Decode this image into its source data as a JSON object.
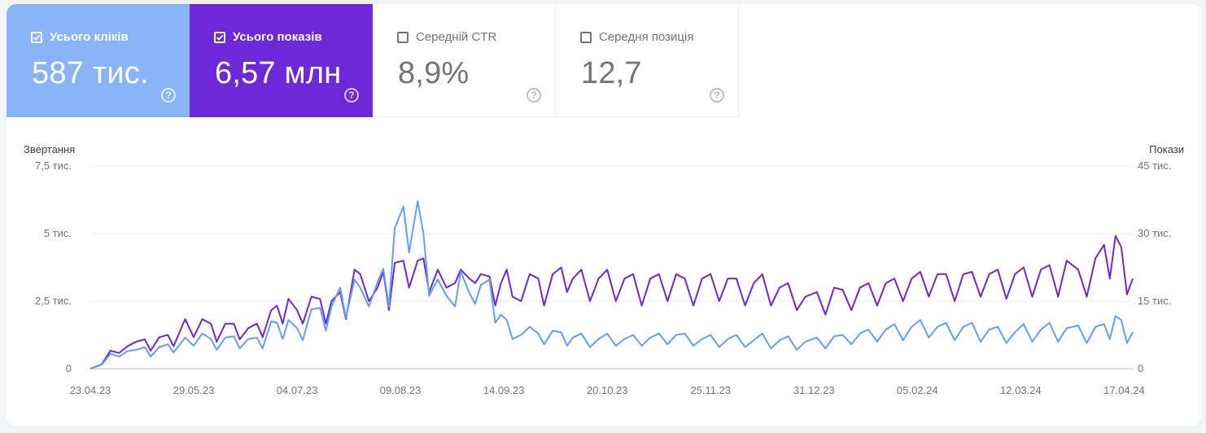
{
  "metrics": [
    {
      "label": "Усього кліків",
      "value": "587 тис.",
      "checked": true,
      "color": "#8ab4f8",
      "help_icon": "help-circle-icon"
    },
    {
      "label": "Усього показів",
      "value": "6,57 млн",
      "checked": true,
      "color": "#6d28d9",
      "help_icon": "help-circle-icon"
    },
    {
      "label": "Середній CTR",
      "value": "8,9%",
      "checked": false,
      "color": "#ffffff",
      "help_icon": "help-circle-icon"
    },
    {
      "label": "Середня позиція",
      "value": "12,7",
      "checked": false,
      "color": "#ffffff",
      "help_icon": "help-circle-icon"
    }
  ],
  "chart_data": {
    "type": "line",
    "left_axis_label": "Звертання",
    "right_axis_label": "Покази",
    "y_left_ticks": [
      "7,5 тис.",
      "5 тис.",
      "2,5 тис.",
      "0"
    ],
    "y_right_ticks": [
      "45 тис.",
      "30 тис.",
      "15 тис.",
      "0"
    ],
    "ylim_left": [
      0,
      7500
    ],
    "ylim_right": [
      0,
      45000
    ],
    "x_ticks": [
      "23.04.23",
      "29.05.23",
      "04.07.23",
      "09.08.23",
      "14.09.23",
      "20.10.23",
      "25.11.23",
      "31.12.23",
      "05.02.24",
      "12.03.24",
      "17.04.24"
    ],
    "x_range": [
      "23.04.23",
      "20.04.24"
    ],
    "grid": true,
    "series": [
      {
        "name": "Усього показів",
        "axis": "right",
        "color": "#6d28d9",
        "points": [
          [
            "2023-04-23",
            0
          ],
          [
            "2023-04-27",
            1000
          ],
          [
            "2023-04-30",
            4000
          ],
          [
            "2023-05-03",
            3500
          ],
          [
            "2023-05-06",
            5000
          ],
          [
            "2023-05-09",
            6000
          ],
          [
            "2023-05-12",
            6500
          ],
          [
            "2023-05-14",
            4000
          ],
          [
            "2023-05-17",
            7000
          ],
          [
            "2023-05-20",
            7500
          ],
          [
            "2023-05-22",
            5000
          ],
          [
            "2023-05-26",
            11000
          ],
          [
            "2023-05-29",
            7000
          ],
          [
            "2023-06-01",
            11000
          ],
          [
            "2023-06-04",
            10000
          ],
          [
            "2023-06-06",
            6000
          ],
          [
            "2023-06-09",
            10000
          ],
          [
            "2023-06-12",
            10000
          ],
          [
            "2023-06-14",
            6500
          ],
          [
            "2023-06-17",
            9000
          ],
          [
            "2023-06-20",
            10000
          ],
          [
            "2023-06-22",
            7000
          ],
          [
            "2023-06-25",
            13000
          ],
          [
            "2023-06-27",
            14000
          ],
          [
            "2023-06-29",
            10000
          ],
          [
            "2023-07-01",
            15500
          ],
          [
            "2023-07-04",
            13000
          ],
          [
            "2023-07-06",
            10000
          ],
          [
            "2023-07-09",
            16000
          ],
          [
            "2023-07-12",
            15500
          ],
          [
            "2023-07-14",
            10000
          ],
          [
            "2023-07-16",
            15000
          ],
          [
            "2023-07-19",
            17000
          ],
          [
            "2023-07-21",
            11000
          ],
          [
            "2023-07-24",
            22000
          ],
          [
            "2023-07-26",
            21000
          ],
          [
            "2023-07-29",
            15000
          ],
          [
            "2023-08-01",
            18000
          ],
          [
            "2023-08-03",
            21500
          ],
          [
            "2023-08-05",
            13000
          ],
          [
            "2023-08-07",
            23500
          ],
          [
            "2023-08-10",
            24000
          ],
          [
            "2023-08-12",
            18000
          ],
          [
            "2023-08-15",
            24000
          ],
          [
            "2023-08-17",
            24500
          ],
          [
            "2023-08-19",
            17000
          ],
          [
            "2023-08-22",
            22000
          ],
          [
            "2023-08-25",
            18000
          ],
          [
            "2023-08-28",
            19000
          ],
          [
            "2023-08-30",
            22000
          ],
          [
            "2023-09-02",
            20000
          ],
          [
            "2023-09-04",
            19000
          ],
          [
            "2023-09-06",
            21000
          ],
          [
            "2023-09-09",
            20500
          ],
          [
            "2023-09-11",
            14000
          ],
          [
            "2023-09-13",
            19000
          ],
          [
            "2023-09-15",
            22000
          ],
          [
            "2023-09-17",
            16000
          ],
          [
            "2023-09-20",
            15000
          ],
          [
            "2023-09-23",
            21000
          ],
          [
            "2023-09-26",
            20000
          ],
          [
            "2023-09-28",
            14000
          ],
          [
            "2023-10-01",
            21000
          ],
          [
            "2023-10-04",
            22500
          ],
          [
            "2023-10-06",
            17000
          ],
          [
            "2023-10-08",
            20000
          ],
          [
            "2023-10-11",
            22000
          ],
          [
            "2023-10-14",
            15000
          ],
          [
            "2023-10-17",
            20000
          ],
          [
            "2023-10-20",
            22000
          ],
          [
            "2023-10-23",
            15000
          ],
          [
            "2023-10-26",
            20000
          ],
          [
            "2023-10-29",
            21000
          ],
          [
            "2023-11-01",
            14000
          ],
          [
            "2023-11-04",
            20000
          ],
          [
            "2023-11-07",
            21000
          ],
          [
            "2023-11-10",
            15000
          ],
          [
            "2023-11-13",
            21000
          ],
          [
            "2023-11-16",
            20000
          ],
          [
            "2023-11-19",
            14000
          ],
          [
            "2023-11-22",
            20000
          ],
          [
            "2023-11-25",
            21000
          ],
          [
            "2023-11-28",
            15000
          ],
          [
            "2023-12-01",
            20000
          ],
          [
            "2023-12-04",
            20000
          ],
          [
            "2023-12-07",
            14000
          ],
          [
            "2023-12-10",
            19000
          ],
          [
            "2023-12-13",
            21000
          ],
          [
            "2023-12-16",
            14000
          ],
          [
            "2023-12-19",
            18000
          ],
          [
            "2023-12-22",
            19000
          ],
          [
            "2023-12-25",
            13000
          ],
          [
            "2023-12-28",
            16000
          ],
          [
            "2024-01-01",
            17000
          ],
          [
            "2024-01-04",
            12000
          ],
          [
            "2024-01-07",
            18000
          ],
          [
            "2024-01-10",
            17500
          ],
          [
            "2024-01-13",
            13000
          ],
          [
            "2024-01-16",
            18000
          ],
          [
            "2024-01-19",
            19000
          ],
          [
            "2024-01-22",
            14000
          ],
          [
            "2024-01-25",
            19000
          ],
          [
            "2024-01-28",
            20000
          ],
          [
            "2024-01-31",
            15000
          ],
          [
            "2024-02-03",
            20000
          ],
          [
            "2024-02-06",
            21500
          ],
          [
            "2024-02-09",
            16000
          ],
          [
            "2024-02-12",
            21000
          ],
          [
            "2024-02-15",
            21000
          ],
          [
            "2024-02-18",
            15000
          ],
          [
            "2024-02-21",
            21000
          ],
          [
            "2024-02-24",
            21500
          ],
          [
            "2024-02-27",
            16000
          ],
          [
            "2024-03-01",
            21000
          ],
          [
            "2024-03-04",
            22000
          ],
          [
            "2024-03-07",
            15500
          ],
          [
            "2024-03-10",
            21000
          ],
          [
            "2024-03-13",
            22500
          ],
          [
            "2024-03-16",
            16000
          ],
          [
            "2024-03-19",
            22000
          ],
          [
            "2024-03-22",
            23000
          ],
          [
            "2024-03-25",
            16000
          ],
          [
            "2024-03-28",
            24000
          ],
          [
            "2024-04-01",
            22000
          ],
          [
            "2024-04-04",
            16000
          ],
          [
            "2024-04-07",
            24500
          ],
          [
            "2024-04-10",
            27500
          ],
          [
            "2024-04-12",
            20000
          ],
          [
            "2024-04-14",
            29500
          ],
          [
            "2024-04-16",
            27000
          ],
          [
            "2024-04-18",
            16500
          ],
          [
            "2024-04-20",
            20000
          ]
        ]
      },
      {
        "name": "Усього кліків",
        "axis": "left",
        "color": "#669df6",
        "points": [
          [
            "2023-04-23",
            0
          ],
          [
            "2023-04-27",
            150
          ],
          [
            "2023-04-30",
            550
          ],
          [
            "2023-05-03",
            450
          ],
          [
            "2023-05-06",
            650
          ],
          [
            "2023-05-09",
            700
          ],
          [
            "2023-05-12",
            800
          ],
          [
            "2023-05-14",
            450
          ],
          [
            "2023-05-17",
            800
          ],
          [
            "2023-05-20",
            900
          ],
          [
            "2023-05-22",
            600
          ],
          [
            "2023-05-26",
            1150
          ],
          [
            "2023-05-29",
            850
          ],
          [
            "2023-06-01",
            1300
          ],
          [
            "2023-06-04",
            1100
          ],
          [
            "2023-06-06",
            700
          ],
          [
            "2023-06-09",
            1150
          ],
          [
            "2023-06-12",
            1200
          ],
          [
            "2023-06-14",
            750
          ],
          [
            "2023-06-17",
            1100
          ],
          [
            "2023-06-20",
            1150
          ],
          [
            "2023-06-22",
            750
          ],
          [
            "2023-06-25",
            1750
          ],
          [
            "2023-06-27",
            1700
          ],
          [
            "2023-06-29",
            1100
          ],
          [
            "2023-07-01",
            1800
          ],
          [
            "2023-07-04",
            1500
          ],
          [
            "2023-07-06",
            1050
          ],
          [
            "2023-07-09",
            2200
          ],
          [
            "2023-07-12",
            2250
          ],
          [
            "2023-07-14",
            1400
          ],
          [
            "2023-07-16",
            2300
          ],
          [
            "2023-07-19",
            3000
          ],
          [
            "2023-07-21",
            1900
          ],
          [
            "2023-07-24",
            3300
          ],
          [
            "2023-07-26",
            3000
          ],
          [
            "2023-07-29",
            2300
          ],
          [
            "2023-08-01",
            3200
          ],
          [
            "2023-08-03",
            3700
          ],
          [
            "2023-08-05",
            2300
          ],
          [
            "2023-08-07",
            5200
          ],
          [
            "2023-08-10",
            6000
          ],
          [
            "2023-08-12",
            4300
          ],
          [
            "2023-08-15",
            6200
          ],
          [
            "2023-08-17",
            5000
          ],
          [
            "2023-08-19",
            2700
          ],
          [
            "2023-08-22",
            3300
          ],
          [
            "2023-08-25",
            2700
          ],
          [
            "2023-08-28",
            2300
          ],
          [
            "2023-08-30",
            3600
          ],
          [
            "2023-09-02",
            2800
          ],
          [
            "2023-09-04",
            2400
          ],
          [
            "2023-09-06",
            3100
          ],
          [
            "2023-09-09",
            3300
          ],
          [
            "2023-09-11",
            1700
          ],
          [
            "2023-09-13",
            2000
          ],
          [
            "2023-09-15",
            1800
          ],
          [
            "2023-09-17",
            1100
          ],
          [
            "2023-09-20",
            1250
          ],
          [
            "2023-09-23",
            1550
          ],
          [
            "2023-09-26",
            1300
          ],
          [
            "2023-09-28",
            900
          ],
          [
            "2023-10-01",
            1400
          ],
          [
            "2023-10-04",
            1350
          ],
          [
            "2023-10-06",
            850
          ],
          [
            "2023-10-08",
            1150
          ],
          [
            "2023-10-11",
            1300
          ],
          [
            "2023-10-14",
            800
          ],
          [
            "2023-10-17",
            1100
          ],
          [
            "2023-10-20",
            1300
          ],
          [
            "2023-10-23",
            850
          ],
          [
            "2023-10-26",
            1100
          ],
          [
            "2023-10-29",
            1250
          ],
          [
            "2023-11-01",
            850
          ],
          [
            "2023-11-04",
            1150
          ],
          [
            "2023-11-07",
            1300
          ],
          [
            "2023-11-10",
            900
          ],
          [
            "2023-11-13",
            1250
          ],
          [
            "2023-11-16",
            1300
          ],
          [
            "2023-11-19",
            850
          ],
          [
            "2023-11-22",
            1100
          ],
          [
            "2023-11-25",
            1250
          ],
          [
            "2023-11-28",
            800
          ],
          [
            "2023-12-01",
            1100
          ],
          [
            "2023-12-04",
            1250
          ],
          [
            "2023-12-07",
            800
          ],
          [
            "2023-12-10",
            1050
          ],
          [
            "2023-12-13",
            1300
          ],
          [
            "2023-12-16",
            750
          ],
          [
            "2023-12-19",
            1050
          ],
          [
            "2023-12-22",
            1200
          ],
          [
            "2023-12-25",
            700
          ],
          [
            "2023-12-28",
            1000
          ],
          [
            "2024-01-01",
            1150
          ],
          [
            "2024-01-04",
            750
          ],
          [
            "2024-01-07",
            1200
          ],
          [
            "2024-01-10",
            1250
          ],
          [
            "2024-01-13",
            900
          ],
          [
            "2024-01-16",
            1300
          ],
          [
            "2024-01-19",
            1450
          ],
          [
            "2024-01-22",
            1000
          ],
          [
            "2024-01-25",
            1450
          ],
          [
            "2024-01-28",
            1650
          ],
          [
            "2024-01-31",
            1050
          ],
          [
            "2024-02-03",
            1550
          ],
          [
            "2024-02-06",
            1800
          ],
          [
            "2024-02-09",
            1150
          ],
          [
            "2024-02-12",
            1550
          ],
          [
            "2024-02-15",
            1700
          ],
          [
            "2024-02-18",
            1050
          ],
          [
            "2024-02-21",
            1550
          ],
          [
            "2024-02-24",
            1700
          ],
          [
            "2024-02-27",
            1000
          ],
          [
            "2024-03-01",
            1450
          ],
          [
            "2024-03-04",
            1550
          ],
          [
            "2024-03-07",
            950
          ],
          [
            "2024-03-10",
            1350
          ],
          [
            "2024-03-13",
            1650
          ],
          [
            "2024-03-16",
            1000
          ],
          [
            "2024-03-19",
            1450
          ],
          [
            "2024-03-22",
            1700
          ],
          [
            "2024-03-25",
            1000
          ],
          [
            "2024-03-28",
            1500
          ],
          [
            "2024-04-01",
            1600
          ],
          [
            "2024-04-04",
            950
          ],
          [
            "2024-04-07",
            1550
          ],
          [
            "2024-04-10",
            1650
          ],
          [
            "2024-04-12",
            1100
          ],
          [
            "2024-04-14",
            1950
          ],
          [
            "2024-04-16",
            1800
          ],
          [
            "2024-04-18",
            950
          ],
          [
            "2024-04-20",
            1350
          ]
        ]
      }
    ]
  }
}
